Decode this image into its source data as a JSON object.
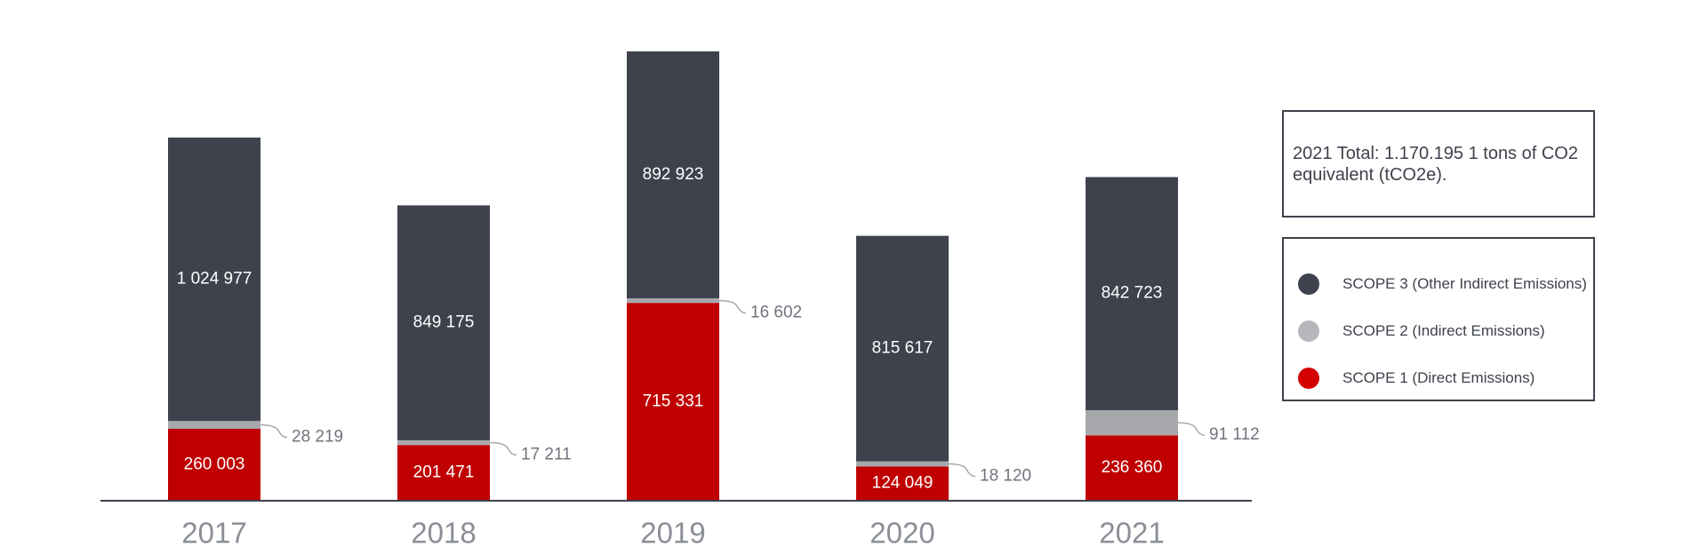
{
  "chart_data": {
    "type": "bar",
    "stacked": true,
    "categories": [
      "2017",
      "2018",
      "2019",
      "2020",
      "2021"
    ],
    "series": [
      {
        "name": "SCOPE 1 (Direct Emissions)",
        "values": [
          260003,
          201471,
          715331,
          124049,
          236360
        ],
        "labels": [
          "260 003",
          "201 471",
          "715 331",
          "124 049",
          "236 360"
        ],
        "color": "#c00000"
      },
      {
        "name": "SCOPE 2 (Indirect Emissions)",
        "values": [
          28219,
          17211,
          16602,
          18120,
          91112
        ],
        "labels": [
          "28 219",
          "17 211",
          "16 602",
          "18 120",
          "91 112"
        ],
        "color": "#a6a8ab"
      },
      {
        "name": "SCOPE 3 (Other Indirect Emissions)",
        "values": [
          1024977,
          849175,
          892923,
          815617,
          842723
        ],
        "labels": [
          "1 024 977",
          "849 175",
          "892 923",
          "815 617",
          "842 723"
        ],
        "color": "#3e424c"
      }
    ],
    "ylim": [
      0,
      1650000
    ],
    "grid": false,
    "legend": {
      "position": "right",
      "items": [
        {
          "label": "SCOPE 3 (Other Indirect Emissions)",
          "color": "#3e424c"
        },
        {
          "label": "SCOPE 2 (Indirect Emissions)",
          "color": "#b5b7ba"
        },
        {
          "label": "SCOPE 1 (Direct Emissions)",
          "color": "#d40000"
        }
      ]
    },
    "annotation": "2021 Total: 1.170.195 1 tons of CO2 equivalent (tCO2e)."
  }
}
